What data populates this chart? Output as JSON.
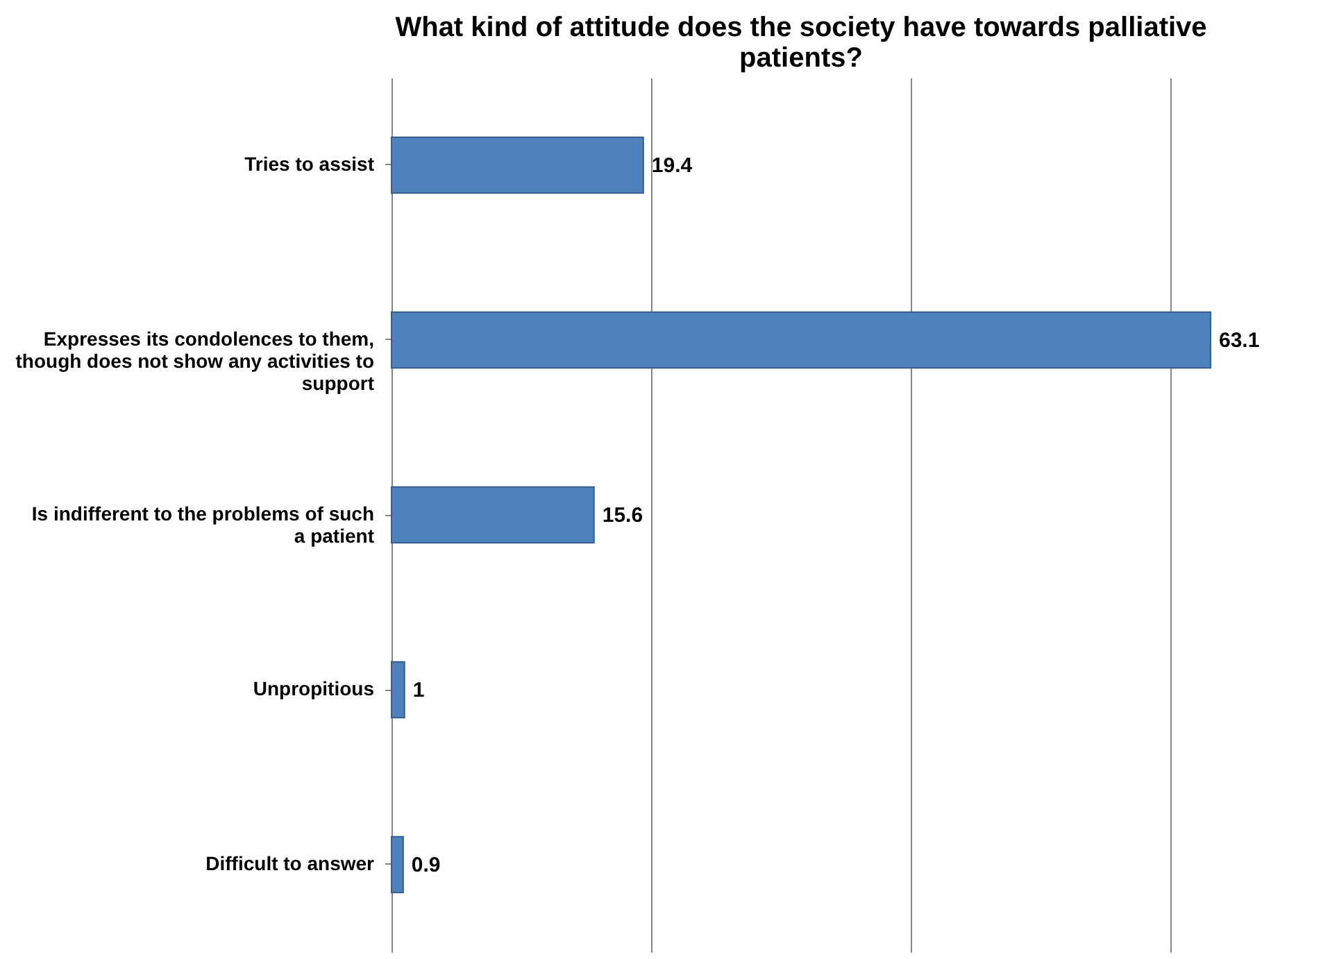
{
  "chart_data": {
    "type": "bar",
    "orientation": "horizontal",
    "title": "What kind of attitude does the society have towards palliative patients?",
    "categories": [
      "Tries to assist",
      "Expresses its condolences to them, though does not show any activities to support",
      "Is indifferent to the problems of such a patient",
      "Unpropitious",
      "Difficult to answer"
    ],
    "values": [
      19.4,
      63.1,
      15.6,
      1,
      0.9
    ],
    "color": "#4f81bd",
    "data_labels": true,
    "xticks": [
      {
        "value": 0,
        "label": null
      },
      {
        "value": 20,
        "label": null
      },
      {
        "value": 40,
        "label": null
      },
      {
        "value": 60,
        "label": null
      }
    ],
    "grid": "x",
    "tick_labels": "y"
  }
}
